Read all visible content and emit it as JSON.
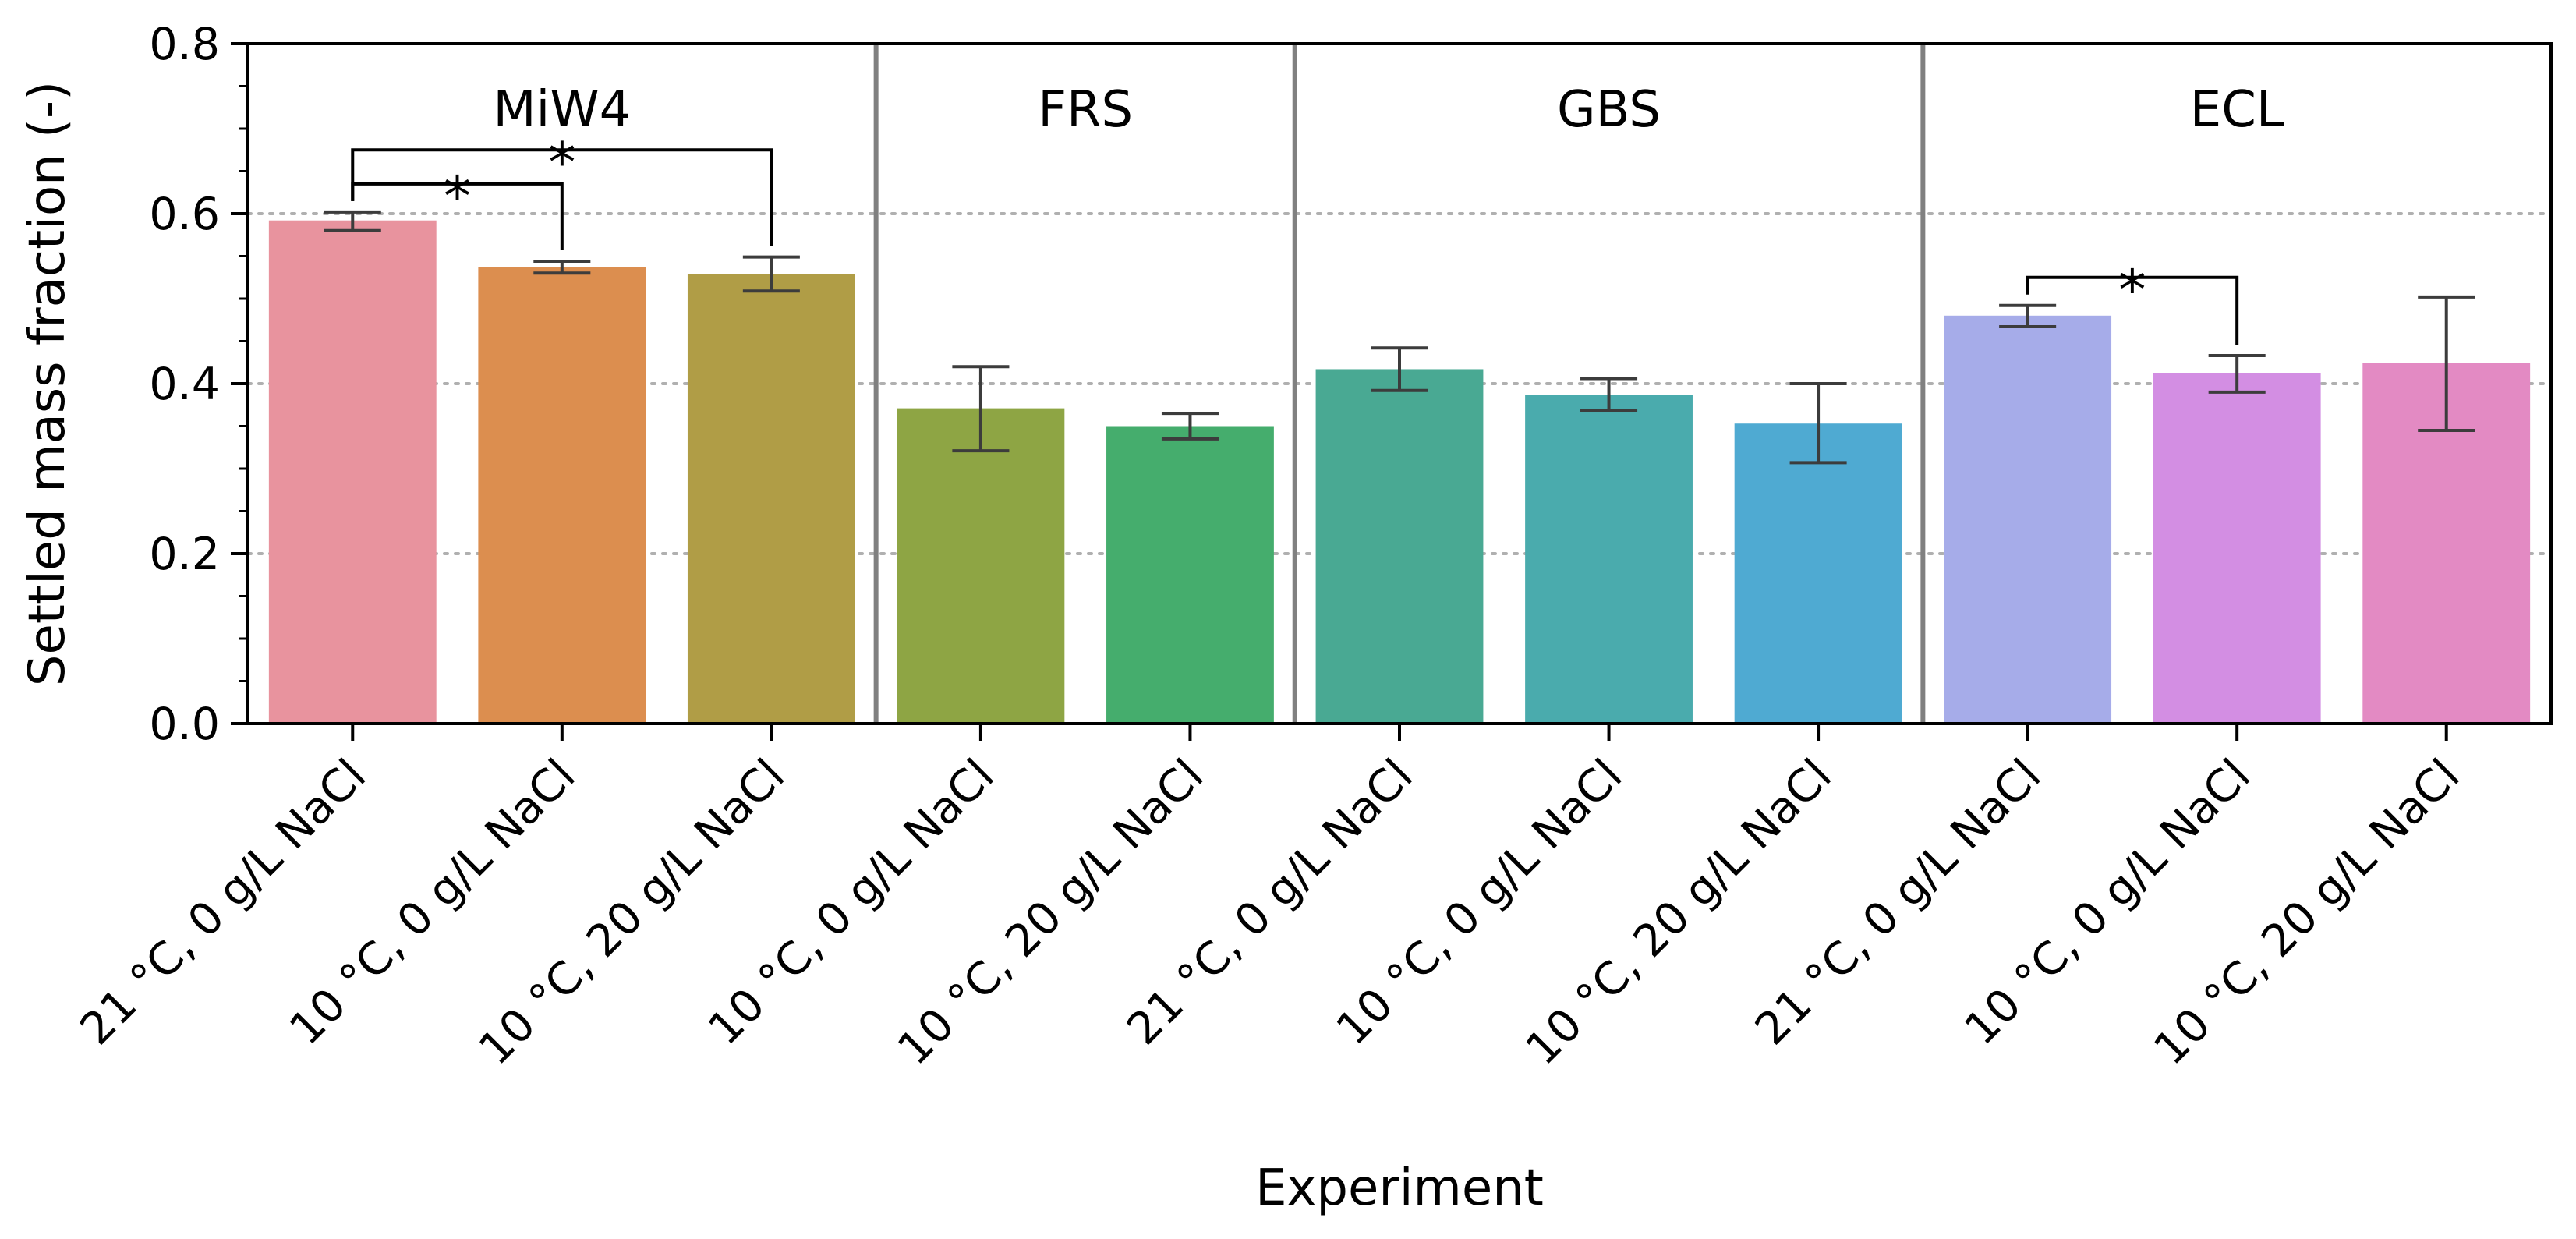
{
  "chart_data": {
    "type": "bar",
    "xlabel": "Experiment",
    "ylabel": "Settled mass fraction (-)",
    "ylim": [
      0,
      0.8
    ],
    "yticks": [
      "0.0",
      "0.2",
      "0.4",
      "0.6",
      "0.8"
    ],
    "ytick_values": [
      0.0,
      0.2,
      0.4,
      0.6,
      0.8
    ],
    "grid": "horizontal dotted at 0.2, 0.4, 0.6",
    "groups": [
      {
        "name": "MiW4",
        "start": 0,
        "end": 2
      },
      {
        "name": "FRS",
        "start": 3,
        "end": 4
      },
      {
        "name": "GBS",
        "start": 5,
        "end": 7
      },
      {
        "name": "ECL",
        "start": 8,
        "end": 10
      }
    ],
    "categories": [
      "21 °C, 0 g/L NaCl",
      "10 °C, 0 g/L NaCl",
      "10 °C, 20 g/L NaCl",
      "10 °C, 0 g/L NaCl",
      "10 °C, 20 g/L NaCl",
      "21 °C, 0 g/L NaCl",
      "10 °C, 0 g/L NaCl",
      "10 °C, 20 g/L NaCl",
      "21 °C, 0 g/L NaCl",
      "10 °C, 0 g/L NaCl",
      "10 °C, 20 g/L NaCl"
    ],
    "values": [
      0.592,
      0.537,
      0.529,
      0.371,
      0.35,
      0.417,
      0.387,
      0.353,
      0.48,
      0.412,
      0.424
    ],
    "error_low": [
      0.58,
      0.53,
      0.509,
      0.321,
      0.335,
      0.392,
      0.368,
      0.307,
      0.467,
      0.39,
      0.345
    ],
    "error_high": [
      0.602,
      0.544,
      0.549,
      0.42,
      0.365,
      0.442,
      0.406,
      0.4,
      0.492,
      0.433,
      0.502
    ],
    "colors": [
      "#e8939e",
      "#dc8e4f",
      "#b09d46",
      "#8ea544",
      "#45ad6d",
      "#49a993",
      "#4aabad",
      "#4faad2",
      "#a6ace9",
      "#d38ee3",
      "#e38ac3"
    ],
    "significance": [
      {
        "from": 0,
        "to": 1,
        "label": "*",
        "level": 0.635
      },
      {
        "from": 0,
        "to": 2,
        "label": "*",
        "level": 0.675
      },
      {
        "from": 8,
        "to": 9,
        "label": "*",
        "level": 0.525
      }
    ]
  }
}
